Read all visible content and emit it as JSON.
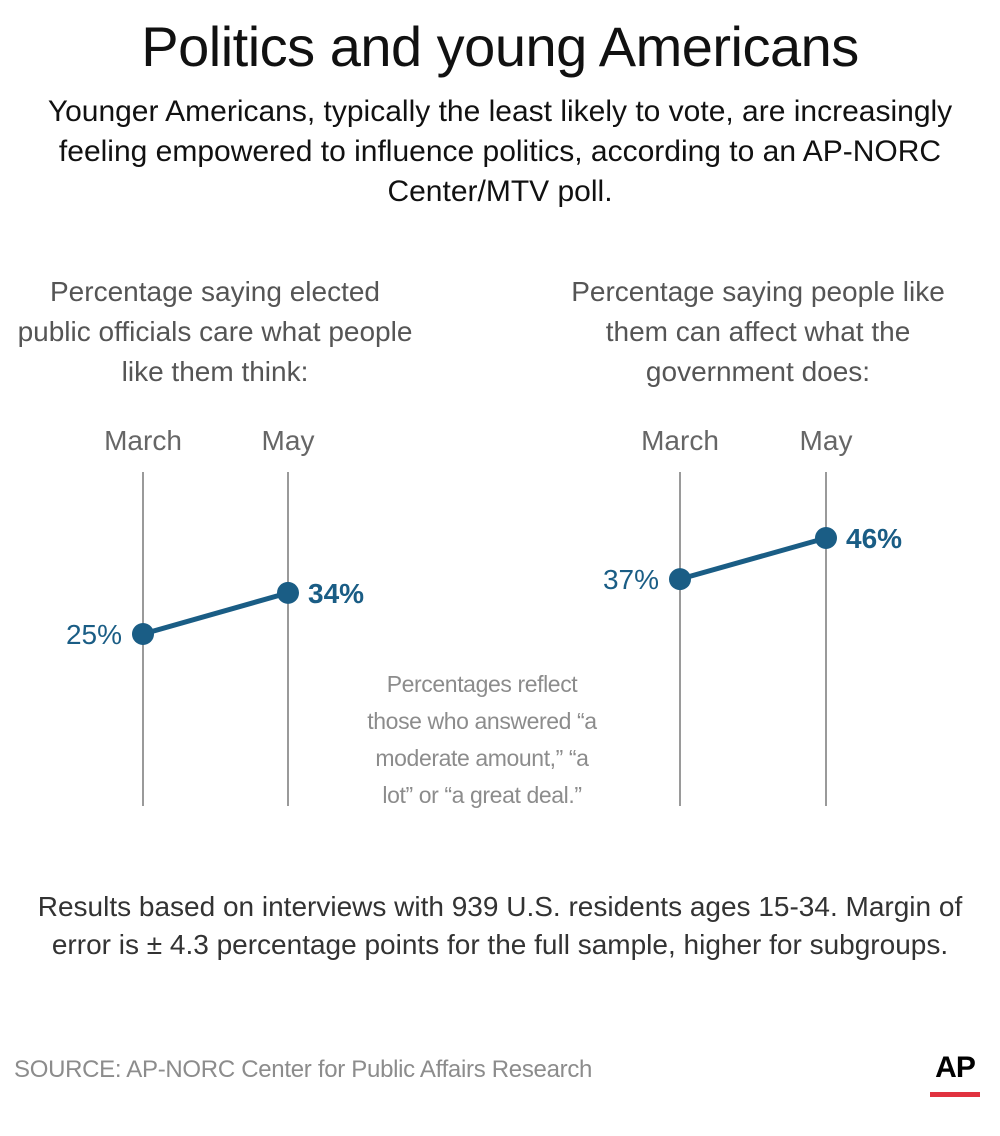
{
  "title": "Politics and young Americans",
  "subtitle": "Younger Americans, typically the least likely to vote, are increasingly feeling empowered to influence politics, according to an AP-NORC Center/MTV poll.",
  "note": "Percentages reflect those who answered “a moderate amount,” “a lot” or “a great deal.”",
  "methodology": "Results based on interviews with 939 U.S. residents ages 15-34. Margin of error is  ± 4.3 percentage points for the full sample, higher for subgroups.",
  "source": "SOURCE: AP-NORC Center for Public Affairs Research",
  "logo": {
    "text": "AP",
    "accent_color": "#e1323f"
  },
  "colors": {
    "series": "#1a5d85",
    "axis_line": "#9a9a9a",
    "axis_label": "#666666"
  },
  "chart_data": [
    {
      "type": "line",
      "title": "Percentage saying elected public officials care what people like them think:",
      "categories": [
        "March",
        "May"
      ],
      "values": [
        25,
        34
      ],
      "value_labels": [
        "25%",
        "34%"
      ]
    },
    {
      "type": "line",
      "title": "Percentage saying people like them can affect what the government does:",
      "categories": [
        "March",
        "May"
      ],
      "values": [
        37,
        46
      ],
      "value_labels": [
        "37%",
        "46%"
      ]
    }
  ]
}
